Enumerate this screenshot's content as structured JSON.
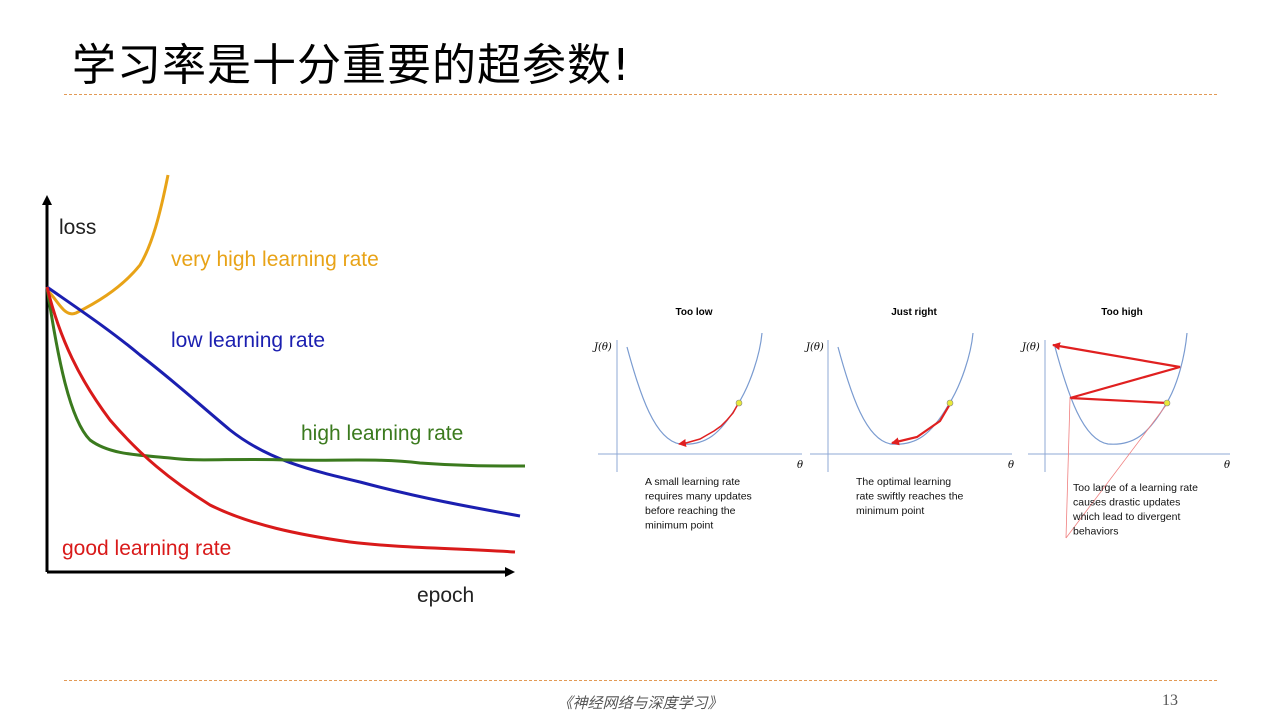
{
  "slide": {
    "title": "学习率是十分重要的超参数!",
    "footer": "《神经网络与深度学习》",
    "page_number": "13"
  },
  "colors": {
    "very_high": "#e8a317",
    "low": "#1b1fb0",
    "high": "#3b7a1e",
    "good": "#d91a1a",
    "divider": "#e39a55",
    "gd_curve": "#7a9bd0",
    "gd_arrow": "#e02020",
    "gd_point": "#e8e83a"
  },
  "chart_data": [
    {
      "type": "line",
      "title": "",
      "xlabel": "epoch",
      "ylabel": "loss",
      "grid": false,
      "legend": "inline labels",
      "series": [
        {
          "name": "very high learning rate",
          "x": [
            0,
            0.1,
            0.3,
            0.8,
            1.5,
            2.2,
            2.6
          ],
          "y": [
            0.72,
            0.6,
            0.58,
            0.64,
            0.73,
            0.86,
            1.0
          ]
        },
        {
          "name": "low learning rate",
          "x": [
            0,
            1,
            2,
            3.5,
            5,
            6.5,
            8,
            10
          ],
          "y": [
            0.72,
            0.6,
            0.5,
            0.36,
            0.26,
            0.2,
            0.14,
            0.1
          ]
        },
        {
          "name": "high learning rate",
          "x": [
            0,
            0.2,
            0.5,
            1,
            2,
            3,
            5,
            7,
            10
          ],
          "y": [
            0.72,
            0.5,
            0.3,
            0.22,
            0.2,
            0.19,
            0.19,
            0.18,
            0.18
          ]
        },
        {
          "name": "good learning rate",
          "x": [
            0,
            0.5,
            1,
            2,
            3,
            4.5,
            6,
            8,
            10
          ],
          "y": [
            0.72,
            0.52,
            0.36,
            0.2,
            0.12,
            0.08,
            0.06,
            0.05,
            0.04
          ]
        }
      ],
      "xlim": [
        0,
        10
      ],
      "ylim": [
        0,
        1
      ]
    },
    {
      "type": "line",
      "title": "Too low",
      "xlabel": "θ",
      "ylabel": "J(θ)",
      "caption": "A small learning rate requires many updates before reaching the minimum point",
      "caption_lines": [
        "A small learning rate",
        "requires many updates",
        "before reaching the",
        "minimum point"
      ],
      "steps": 9
    },
    {
      "type": "line",
      "title": "Just right",
      "xlabel": "θ",
      "ylabel": "J(θ)",
      "caption": "The optimal learning rate swiftly reaches the minimum point",
      "caption_lines": [
        "The optimal learning",
        "rate swiftly reaches the",
        "minimum point"
      ],
      "steps": 3
    },
    {
      "type": "line",
      "title": "Too high",
      "xlabel": "θ",
      "ylabel": "J(θ)",
      "caption": "Too large of a learning rate causes drastic updates which lead to divergent behaviors",
      "caption_lines": [
        "Too large of a learning rate",
        "causes drastic updates",
        "which lead to divergent",
        "behaviors"
      ],
      "steps": 4
    }
  ]
}
